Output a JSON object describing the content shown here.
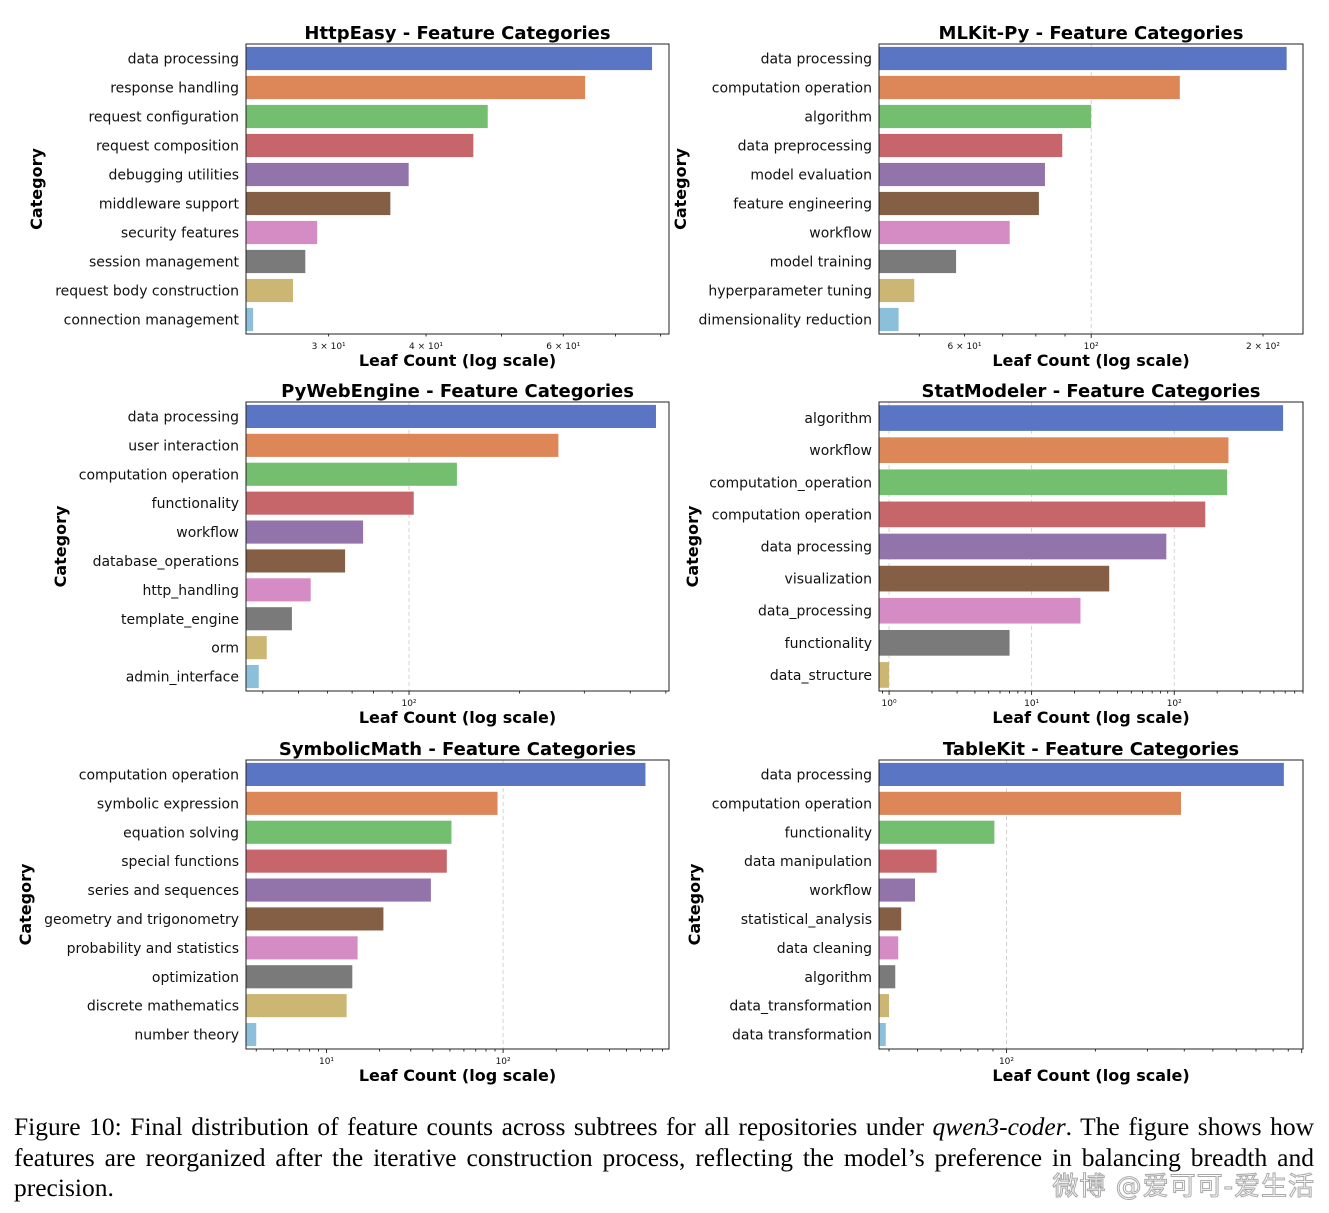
{
  "chart_data": [
    {
      "type": "bar",
      "orientation": "horizontal",
      "scale": "log",
      "title": "HttpEasy - Feature Categories",
      "xlabel": "Leaf Count (log scale)",
      "ylabel": "Category",
      "xlim": [
        23.5,
        82
      ],
      "ticks": [
        {
          "v": 30,
          "label": "3 × 10¹"
        },
        {
          "v": 40,
          "label": "4 × 10¹"
        },
        {
          "v": 60,
          "label": "6 × 10¹"
        }
      ],
      "gridlines": [],
      "categories": [
        "data processing",
        "response handling",
        "request configuration",
        "request composition",
        "debugging utilities",
        "middleware support",
        "security features",
        "session management",
        "request body construction",
        "connection management"
      ],
      "values": [
        78,
        64,
        48,
        46,
        38,
        36,
        29,
        28,
        27,
        24
      ]
    },
    {
      "type": "bar",
      "orientation": "horizontal",
      "scale": "log",
      "title": "MLKit-Py - Feature Categories",
      "xlabel": "Leaf Count (log scale)",
      "ylabel": "Category",
      "xlim": [
        42.5,
        235
      ],
      "ticks": [
        {
          "v": 60,
          "label": "6 × 10¹"
        },
        {
          "v": 100,
          "label": "10²"
        },
        {
          "v": 200,
          "label": "2 × 10²"
        }
      ],
      "gridlines": [
        100
      ],
      "categories": [
        "data processing",
        "computation operation",
        "algorithm",
        "data preprocessing",
        "model evaluation",
        "feature engineering",
        "workflow",
        "model training",
        "hyperparameter tuning",
        "dimensionality reduction"
      ],
      "values": [
        220,
        143,
        100,
        89,
        83,
        81,
        72,
        58,
        49,
        46
      ]
    },
    {
      "type": "bar",
      "orientation": "horizontal",
      "scale": "log",
      "title": "PyWebEngine - Feature Categories",
      "xlabel": "Leaf Count (log scale)",
      "ylabel": "Category",
      "xlim": [
        36,
        510
      ],
      "ticks": [
        {
          "v": 100,
          "label": "10²"
        }
      ],
      "gridlines": [
        100
      ],
      "categories": [
        "data processing",
        "user interaction",
        "computation operation",
        "functionality",
        "workflow",
        "database_operations",
        "http_handling",
        "template_engine",
        "orm",
        "admin_interface"
      ],
      "values": [
        470,
        255,
        135,
        103,
        75,
        67,
        54,
        48,
        41,
        39
      ]
    },
    {
      "type": "bar",
      "orientation": "horizontal",
      "scale": "log",
      "title": "StatModeler - Feature Categories",
      "xlabel": "Leaf Count (log scale)",
      "ylabel": "Category",
      "xlim": [
        0.85,
        800
      ],
      "ticks": [
        {
          "v": 1,
          "label": "10⁰"
        },
        {
          "v": 10,
          "label": "10¹"
        },
        {
          "v": 100,
          "label": "10²"
        }
      ],
      "gridlines": [
        1,
        10,
        100
      ],
      "categories": [
        "algorithm",
        "workflow",
        "computation_operation",
        "computation operation",
        "data processing",
        "visualization",
        "data_processing",
        "functionality",
        "data_structure"
      ],
      "values": [
        580,
        240,
        235,
        165,
        88,
        35,
        22,
        7,
        1
      ]
    },
    {
      "type": "bar",
      "orientation": "horizontal",
      "scale": "log",
      "title": "SymbolicMath - Feature Categories",
      "xlabel": "Leaf Count (log scale)",
      "ylabel": "Category",
      "xlim": [
        3.5,
        870
      ],
      "ticks": [
        {
          "v": 10,
          "label": "10¹"
        },
        {
          "v": 100,
          "label": "10²"
        }
      ],
      "gridlines": [
        100
      ],
      "categories": [
        "computation operation",
        "symbolic expression",
        "equation solving",
        "special functions",
        "series and sequences",
        "geometry and trigonometry",
        "probability and statistics",
        "optimization",
        "discrete mathematics",
        "number theory"
      ],
      "values": [
        640,
        93,
        51,
        48,
        39,
        21,
        15,
        14,
        13,
        4
      ]
    },
    {
      "type": "bar",
      "orientation": "horizontal",
      "scale": "log",
      "title": "TableKit - Feature Categories",
      "xlabel": "Leaf Count (log scale)",
      "ylabel": "Category",
      "xlim": [
        37,
        1010
      ],
      "ticks": [
        {
          "v": 100,
          "label": "10²"
        }
      ],
      "gridlines": [
        100
      ],
      "categories": [
        "data processing",
        "computation operation",
        "functionality",
        "data manipulation",
        "workflow",
        "statistical_analysis",
        "data cleaning",
        "algorithm",
        "data_transformation",
        "data transformation"
      ],
      "values": [
        870,
        390,
        91,
        58,
        49,
        44,
        43,
        42,
        40,
        39
      ]
    }
  ],
  "colors": [
    "#5975c3",
    "#dd8658",
    "#73bf6f",
    "#c6656a",
    "#9273aa",
    "#845f45",
    "#d58bc4",
    "#7a7a7a",
    "#ccb674",
    "#8cbfd9"
  ],
  "caption": {
    "prefix": "Figure 10: Final distribution of feature counts across subtrees for all repositories under ",
    "model": "qwen3-coder",
    "suffix": ". The figure shows how features are reorganized after the iterative construction process, reflecting the model’s preference in balancing breadth and precision."
  },
  "watermark": "微博 @爱可可-爱生活"
}
